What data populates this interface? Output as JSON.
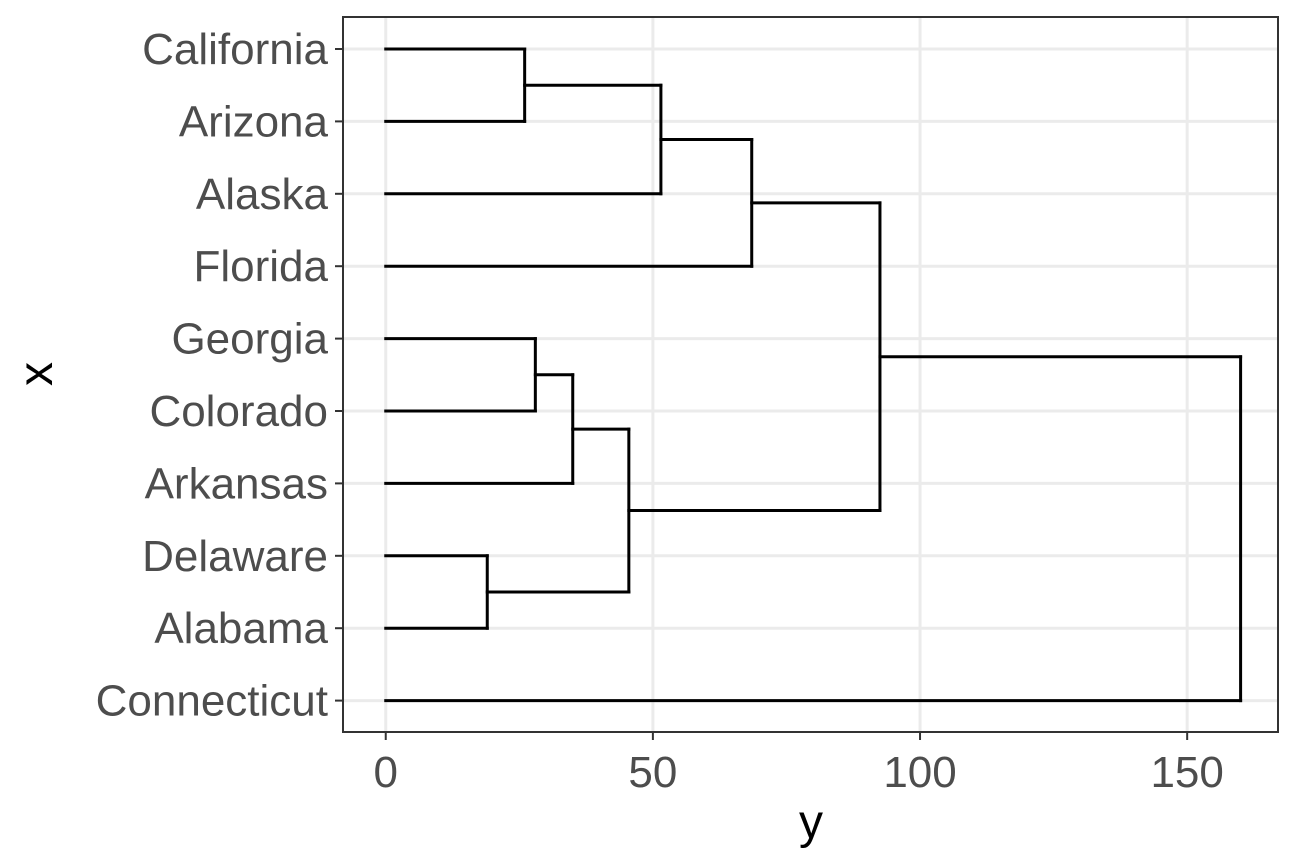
{
  "chart_data": {
    "type": "dendrogram",
    "orientation": "horizontal",
    "xlabel": "y",
    "ylabel": "x",
    "xlim": [
      -8,
      167
    ],
    "x_ticks": [
      0,
      50,
      100,
      150
    ],
    "x_tick_labels": [
      "0",
      "50",
      "100",
      "150"
    ],
    "leaves": [
      "California",
      "Arizona",
      "Alaska",
      "Florida",
      "Georgia",
      "Colorado",
      "Arkansas",
      "Delaware",
      "Alabama",
      "Connecticut"
    ],
    "merges": [
      {
        "members": [
          "Delaware",
          "Alabama"
        ],
        "height": 19
      },
      {
        "members": [
          "California",
          "Arizona"
        ],
        "height": 26
      },
      {
        "members": [
          "Georgia",
          "Colorado"
        ],
        "height": 28
      },
      {
        "members": [
          "Georgia",
          "Colorado",
          "Arkansas"
        ],
        "height": 35
      },
      {
        "members": [
          "Georgia",
          "Colorado",
          "Arkansas",
          "Delaware",
          "Alabama"
        ],
        "height": 45.5
      },
      {
        "members": [
          "California",
          "Arizona",
          "Alaska"
        ],
        "height": 51.5
      },
      {
        "members": [
          "California",
          "Arizona",
          "Alaska",
          "Florida"
        ],
        "height": 68.5
      },
      {
        "members": [
          "California",
          "Arizona",
          "Alaska",
          "Florida",
          "Georgia",
          "Colorado",
          "Arkansas",
          "Delaware",
          "Alabama"
        ],
        "height": 92.5
      },
      {
        "members": [
          "California",
          "Arizona",
          "Alaska",
          "Florida",
          "Georgia",
          "Colorado",
          "Arkansas",
          "Delaware",
          "Alabama",
          "Connecticut"
        ],
        "height": 160
      }
    ],
    "grid": true,
    "legend": "none"
  }
}
